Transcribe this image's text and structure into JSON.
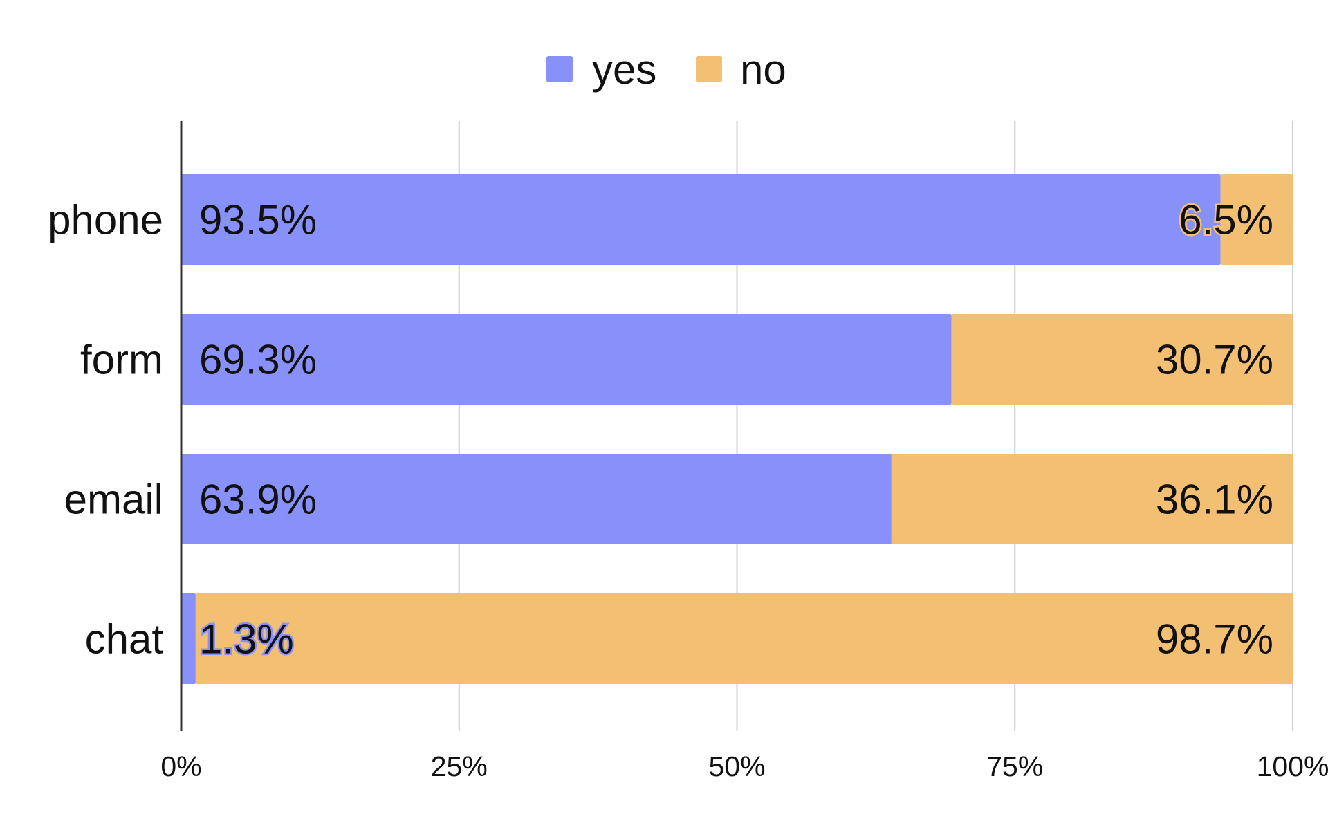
{
  "chart_data": {
    "type": "bar",
    "orientation": "horizontal",
    "stacked": "percent",
    "categories": [
      "phone",
      "form",
      "email",
      "chat"
    ],
    "series": [
      {
        "name": "yes",
        "values": [
          93.5,
          69.3,
          63.9,
          1.3
        ],
        "labels": [
          "93.5%",
          "69.3%",
          "63.9%",
          "1.3%"
        ]
      },
      {
        "name": "no",
        "values": [
          6.5,
          30.7,
          36.1,
          98.7
        ],
        "labels": [
          "6.5%",
          "30.7%",
          "36.1%",
          "98.7%"
        ]
      }
    ],
    "xlim": [
      0,
      100
    ],
    "xticks": [
      "0%",
      "25%",
      "50%",
      "75%",
      "100%"
    ],
    "grid": true,
    "legend_position": "top-center",
    "title": "",
    "xlabel": "",
    "ylabel": ""
  },
  "colors": {
    "yes": "#8891f9",
    "no": "#f3bf73",
    "grid": "#cccccc",
    "axis": "#333333"
  }
}
